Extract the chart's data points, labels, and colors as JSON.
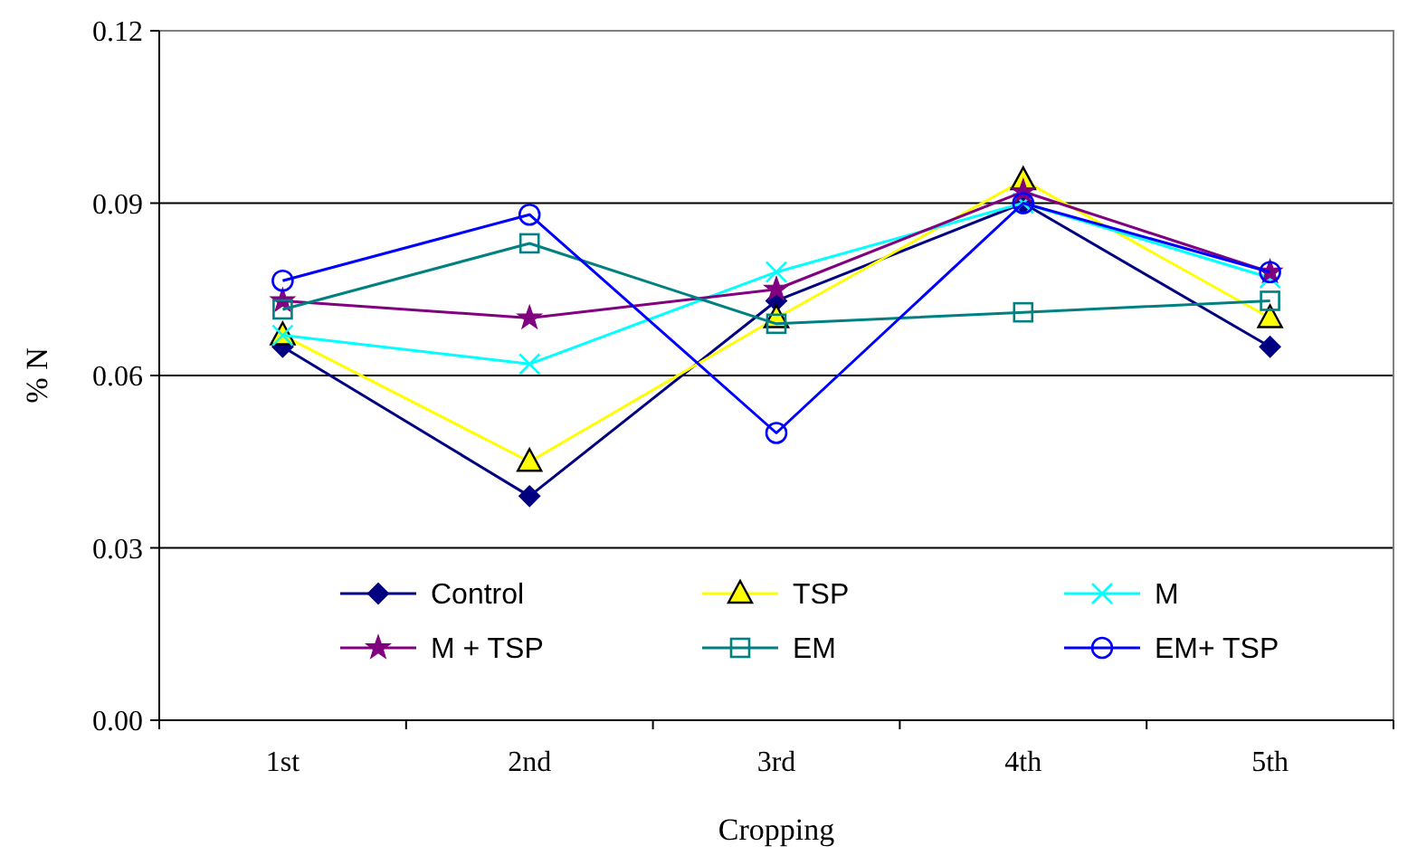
{
  "chart_data": {
    "type": "line",
    "xlabel": "Cropping",
    "ylabel": "% N",
    "categories": [
      "1st",
      "2nd",
      "3rd",
      "4th",
      "5th"
    ],
    "ylim": [
      0,
      0.12
    ],
    "yticks": [
      {
        "value": 0,
        "label": "0.00"
      },
      {
        "value": 0.03,
        "label": "0.03"
      },
      {
        "value": 0.06,
        "label": "0.06"
      },
      {
        "value": 0.09,
        "label": "0.09"
      },
      {
        "value": 0.12,
        "label": "0.12"
      }
    ],
    "grid": "y",
    "legend": "bottom",
    "series": [
      {
        "name": "Control",
        "color": "#000080",
        "marker": "diamond",
        "values": [
          0.065,
          0.039,
          0.073,
          0.09,
          0.065
        ]
      },
      {
        "name": "TSP",
        "color": "#ffff00",
        "marker": "triangle",
        "values": [
          0.067,
          0.045,
          0.07,
          0.094,
          0.07
        ]
      },
      {
        "name": "M",
        "color": "#00ffff",
        "marker": "cross",
        "values": [
          0.067,
          0.062,
          0.078,
          0.09,
          0.077
        ]
      },
      {
        "name": "M + TSP",
        "color": "#800080",
        "marker": "star",
        "values": [
          0.073,
          0.07,
          0.075,
          0.092,
          0.078
        ]
      },
      {
        "name": "EM",
        "color": "#008080",
        "marker": "square",
        "values": [
          0.0715,
          0.083,
          0.069,
          0.071,
          0.073
        ]
      },
      {
        "name": "EM+ TSP",
        "color": "#0000ff",
        "marker": "circle",
        "values": [
          0.0765,
          0.088,
          0.05,
          0.09,
          0.078
        ]
      }
    ]
  }
}
